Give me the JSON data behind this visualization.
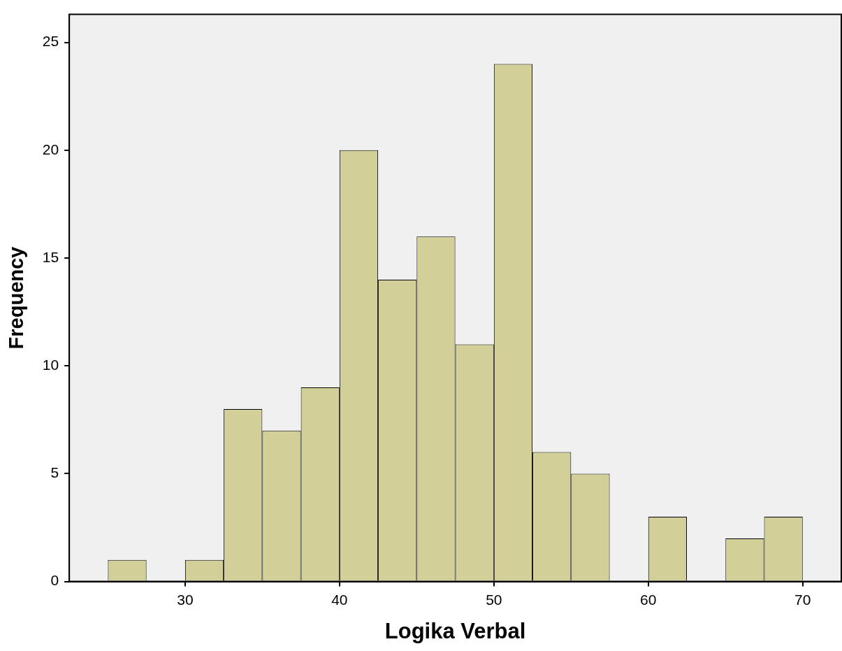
{
  "chart_data": {
    "type": "histogram",
    "xlabel": "Logika Verbal",
    "ylabel": "Frequency",
    "bins": [
      25,
      27.5,
      30,
      32.5,
      35,
      37.5,
      40,
      42.5,
      45,
      47.5,
      50,
      52.5,
      55,
      57.5,
      60,
      62.5,
      65,
      67.5,
      70
    ],
    "values": [
      1,
      0,
      1,
      8,
      7,
      9,
      20,
      14,
      16,
      11,
      24,
      6,
      5,
      0,
      3,
      0,
      2,
      3
    ],
    "color": "#d3cf98",
    "xlim": [
      22.5,
      72.5
    ],
    "xticks": [
      30,
      40,
      50,
      60,
      70
    ],
    "ylim": [
      0,
      26.3
    ],
    "yticks": [
      0,
      5,
      10,
      15,
      20,
      25
    ],
    "grid": false,
    "legend": false
  }
}
